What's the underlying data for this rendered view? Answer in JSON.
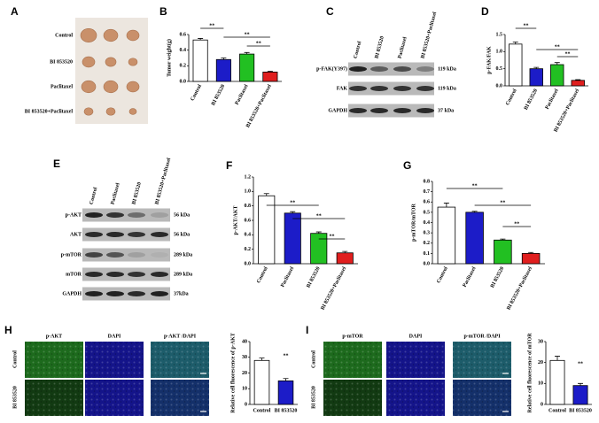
{
  "photos": {
    "panel_label": "A",
    "rows": [
      "Control",
      "BI 853520",
      "Paclitaxel",
      "BI 853520+Paclitaxel"
    ]
  },
  "blots": [
    {
      "panel_label": "C",
      "columns": [
        "Control",
        "BI 853520",
        "Paclitaxel",
        "BI 853520+Paclitaxel"
      ],
      "rows": [
        {
          "name": "p-FAK(Y397)",
          "size": "119 kDa"
        },
        {
          "name": "FAK",
          "size": "119 kDa"
        },
        {
          "name": "GAPDH",
          "size": "37 kDa"
        }
      ]
    },
    {
      "panel_label": "E",
      "columns": [
        "Control",
        "Paclitaxel",
        "BI 853520",
        "BI 853520+Paclitaxel"
      ],
      "rows": [
        {
          "name": "p-AKT",
          "size": "56 kDa"
        },
        {
          "name": "AKT",
          "size": "56 kDa"
        },
        {
          "name": "p-mTOR",
          "size": "289 kDa"
        },
        {
          "name": "mTOR",
          "size": "289 kDa"
        },
        {
          "name": "GAPDH",
          "size": "37kDa"
        }
      ]
    }
  ],
  "micrographs": [
    {
      "panel_label": "H",
      "columns": [
        "p-AKT",
        "DAPI",
        "p-AKT /DAPI"
      ],
      "rows": [
        "Control",
        "BI 853520"
      ]
    },
    {
      "panel_label": "I",
      "columns": [
        "p-mTOR",
        "DAPI",
        "p-mTOR /DAPI"
      ],
      "rows": [
        "Control",
        "BI 853520"
      ]
    }
  ],
  "chart_data": [
    {
      "type": "bar",
      "panel_label": "B",
      "y_label": "Tumor weight(g)",
      "categories": [
        "Control",
        "BI 853520",
        "Paclitaxel",
        "BI 853520+Paclitaxel"
      ],
      "values": [
        0.53,
        0.28,
        0.35,
        0.12
      ],
      "errors": [
        0.02,
        0.02,
        0.02,
        0.01
      ],
      "colors": [
        "#ffffff",
        "#1c1cc8",
        "#22c022",
        "#e01e1e"
      ],
      "ylim": [
        0,
        0.6
      ],
      "yticks": [
        {
          "value": 0,
          "label": "0.0"
        },
        {
          "value": 0.2,
          "label": "0.2"
        },
        {
          "value": 0.4,
          "label": "0.4"
        },
        {
          "value": 0.6,
          "label": "0.6"
        }
      ],
      "annotations": [
        "**",
        "**",
        "**"
      ]
    },
    {
      "type": "bar",
      "panel_label": "D",
      "y_label": "p-FAK/FAK",
      "categories": [
        "Control",
        "BI 853520",
        "Paclitaxel",
        "BI 853520+Paclitaxel"
      ],
      "values": [
        1.22,
        0.5,
        0.62,
        0.16
      ],
      "errors": [
        0.06,
        0.04,
        0.06,
        0.02
      ],
      "colors": [
        "#ffffff",
        "#1c1cc8",
        "#22c022",
        "#e01e1e"
      ],
      "ylim": [
        0,
        1.5
      ],
      "yticks": [
        {
          "value": 0,
          "label": "0.0"
        },
        {
          "value": 0.5,
          "label": "0.5"
        },
        {
          "value": 1,
          "label": "1.0"
        },
        {
          "value": 1.5,
          "label": "1.5"
        }
      ],
      "annotations": [
        "**",
        "**",
        "**"
      ]
    },
    {
      "type": "bar",
      "panel_label": "F",
      "y_label": "p-AKT/AKT",
      "categories": [
        "Control",
        "Paclitaxel",
        "BI 853520",
        "BI 853520+Paclitaxel"
      ],
      "values": [
        0.94,
        0.7,
        0.42,
        0.15
      ],
      "errors": [
        0.03,
        0.02,
        0.02,
        0.02
      ],
      "colors": [
        "#ffffff",
        "#1c1cc8",
        "#22c022",
        "#e01e1e"
      ],
      "ylim": [
        0,
        1.2
      ],
      "yticks": [
        {
          "value": 0,
          "label": "0.0"
        },
        {
          "value": 0.2,
          "label": "0.2"
        },
        {
          "value": 0.4,
          "label": "0.4"
        },
        {
          "value": 0.6,
          "label": "0.6"
        },
        {
          "value": 0.8,
          "label": "0.8"
        },
        {
          "value": 1,
          "label": "1.0"
        },
        {
          "value": 1.2,
          "label": "1.2"
        }
      ],
      "annotations": [
        "**",
        "**",
        "**"
      ]
    },
    {
      "type": "bar",
      "panel_label": "G",
      "y_label": "p-mTOR/mTOR",
      "categories": [
        "Control",
        "Paclitaxel",
        "BI 853520",
        "BI 853520+Paclitaxel"
      ],
      "values": [
        0.55,
        0.5,
        0.23,
        0.1
      ],
      "errors": [
        0.04,
        0.01,
        0.01,
        0.01
      ],
      "colors": [
        "#ffffff",
        "#1c1cc8",
        "#22c022",
        "#e01e1e"
      ],
      "ylim": [
        0,
        0.8
      ],
      "yticks": [
        {
          "value": 0,
          "label": "0.0"
        },
        {
          "value": 0.1,
          "label": "0.1"
        },
        {
          "value": 0.2,
          "label": "0.2"
        },
        {
          "value": 0.3,
          "label": "0.3"
        },
        {
          "value": 0.4,
          "label": "0.4"
        },
        {
          "value": 0.5,
          "label": "0.5"
        },
        {
          "value": 0.6,
          "label": "0.6"
        },
        {
          "value": 0.7,
          "label": "0.7"
        },
        {
          "value": 0.8,
          "label": "0.8"
        }
      ],
      "annotations": [
        "**",
        "**",
        "**"
      ]
    },
    {
      "type": "bar",
      "y_label": "Relative cell fluorescence of p-AKT",
      "categories": [
        "Control",
        "BI 853520"
      ],
      "values": [
        28,
        15
      ],
      "errors": [
        1.5,
        1.5
      ],
      "colors": [
        "#ffffff",
        "#1c1cc8"
      ],
      "ylim": [
        0,
        40
      ],
      "yticks": [
        0,
        10,
        20,
        30,
        40
      ],
      "annotations": [
        "**"
      ]
    },
    {
      "type": "bar",
      "y_label": "Relative cell fluorescence of mTOR",
      "categories": [
        "Control",
        "BI 853520"
      ],
      "values": [
        21,
        9
      ],
      "errors": [
        2,
        1
      ],
      "colors": [
        "#ffffff",
        "#1c1cc8"
      ],
      "ylim": [
        0,
        30
      ],
      "yticks": [
        0,
        10,
        20,
        30
      ],
      "annotations": [
        "**"
      ]
    }
  ]
}
